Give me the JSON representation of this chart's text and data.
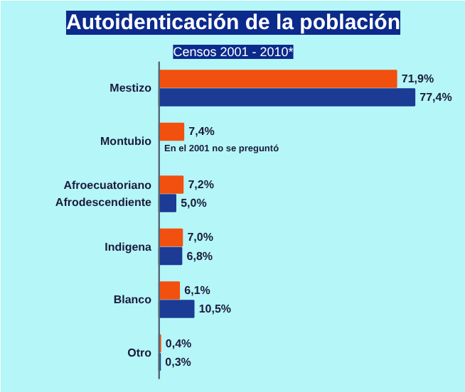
{
  "chart_data": {
    "type": "bar",
    "orientation": "horizontal",
    "title": "Autoidenticación de la población",
    "subtitle": "Censos 2001 - 2010*",
    "categories": [
      "Mestizo",
      "Montubio",
      "Afroecuatoriano\nAfrodescendiente",
      "Indigena",
      "Blanco",
      "Otro"
    ],
    "series": [
      {
        "color": "#f2500f",
        "values": [
          71.9,
          7.4,
          7.2,
          7.0,
          6.1,
          0.4
        ],
        "value_labels": [
          "71,9%",
          "7,4%",
          "7,2%",
          "7,0%",
          "6,1%",
          "0,4%"
        ]
      },
      {
        "color": "#1c3b94",
        "values": [
          77.4,
          null,
          5.0,
          6.8,
          10.5,
          0.3
        ],
        "value_labels": [
          "77,4%",
          null,
          "5,0%",
          "6,8%",
          "10,5%",
          "0,3%"
        ]
      }
    ],
    "annotations": [
      {
        "text": "En el 2001 no se preguntó",
        "x": 0,
        "y": "Montubio"
      }
    ],
    "grid": false
  }
}
